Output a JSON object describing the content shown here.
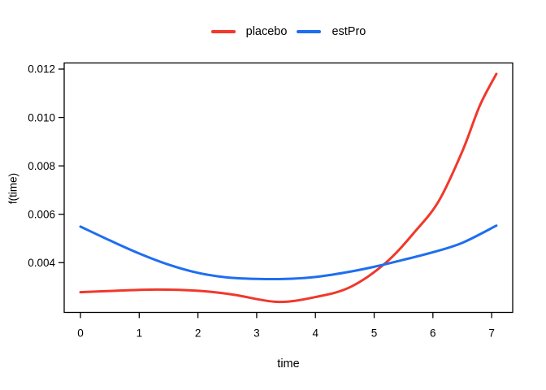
{
  "figure": {
    "background_color": "#ffffff",
    "text_color": "#000000",
    "axis_color": "#000000"
  },
  "chart_data": {
    "type": "line",
    "title": "",
    "xlabel": "time",
    "ylabel": "f(time)",
    "xlim": [
      -0.277,
      7.358
    ],
    "ylim": [
      0.001945,
      0.012252
    ],
    "x_ticks": [
      0,
      1,
      2,
      3,
      4,
      5,
      6,
      7
    ],
    "y_ticks": [
      0.004,
      0.006,
      0.008,
      0.01,
      0.012
    ],
    "grid": false,
    "legend_position": "top-center",
    "line_width": 3,
    "series": [
      {
        "name": "placebo",
        "color": "#f0382b",
        "points": [
          [
            0,
            0.00278
          ],
          [
            0.6,
            0.00284
          ],
          [
            1.3,
            0.00289
          ],
          [
            2.0,
            0.00284
          ],
          [
            2.6,
            0.00268
          ],
          [
            3.35,
            0.00238
          ],
          [
            4.0,
            0.00258
          ],
          [
            4.6,
            0.003
          ],
          [
            5.2,
            0.004
          ],
          [
            5.7,
            0.0053
          ],
          [
            6.1,
            0.00655
          ],
          [
            6.5,
            0.0086
          ],
          [
            6.8,
            0.0105
          ],
          [
            7.08,
            0.0118
          ]
        ]
      },
      {
        "name": "estPro",
        "color": "#1e6ef0",
        "points": [
          [
            0,
            0.00549
          ],
          [
            0.5,
            0.00492
          ],
          [
            1.0,
            0.00438
          ],
          [
            1.5,
            0.00392
          ],
          [
            2.0,
            0.00358
          ],
          [
            2.5,
            0.00339
          ],
          [
            3.0,
            0.00333
          ],
          [
            3.5,
            0.00333
          ],
          [
            4.0,
            0.00341
          ],
          [
            4.5,
            0.00359
          ],
          [
            5.0,
            0.00383
          ],
          [
            5.5,
            0.00412
          ],
          [
            6.0,
            0.00443
          ],
          [
            6.5,
            0.00482
          ],
          [
            7.08,
            0.00553
          ]
        ]
      }
    ]
  }
}
